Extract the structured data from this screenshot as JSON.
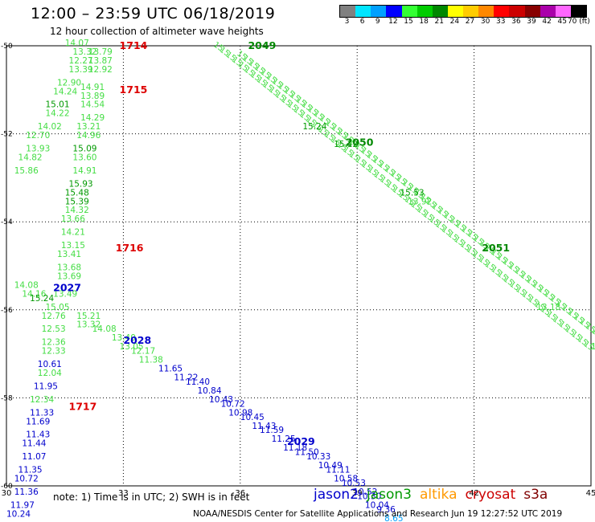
{
  "title": "12:00 – 23:59 UTC 06/18/2019",
  "subtitle": "12 hour collection of altimeter wave heights",
  "note": "note:  1) Time is in UTC; 2) SWH is in feet",
  "credit": "NOAA/NESDIS Center for Satellite Applications and Research     Jun 19 12:27:52 UTC 2019",
  "legend": {
    "satellites": [
      {
        "name": "jason2",
        "color": "#0000cc"
      },
      {
        "name": "jason3",
        "color": "#009900"
      },
      {
        "name": "altika",
        "color": "#ff9900"
      },
      {
        "name": "cryosat",
        "color": "#cc0000"
      },
      {
        "name": "s3a",
        "color": "#800000"
      }
    ],
    "color_scale": [
      {
        "label": "3",
        "color": "#808080"
      },
      {
        "label": "6",
        "color": "#00e5ff"
      },
      {
        "label": "9",
        "color": "#00a0ff"
      },
      {
        "label": "12",
        "color": "#0000ff"
      },
      {
        "label": "15",
        "color": "#33ff33"
      },
      {
        "label": "18",
        "color": "#00cc00"
      },
      {
        "label": "21",
        "color": "#008800"
      },
      {
        "label": "24",
        "color": "#ffff00"
      },
      {
        "label": "27",
        "color": "#ffcc00"
      },
      {
        "label": "30",
        "color": "#ff8800"
      },
      {
        "label": "33",
        "color": "#ff0000"
      },
      {
        "label": "36",
        "color": "#cc0000"
      },
      {
        "label": "39",
        "color": "#880000"
      },
      {
        "label": "42",
        "color": "#aa00aa"
      },
      {
        "label": "45",
        "color": "#ff66ff"
      },
      {
        "label": "70 (ft)",
        "color": "#000000"
      }
    ]
  },
  "chart_data": {
    "type": "scatter",
    "xlim": [
      30,
      45
    ],
    "ylim": [
      -60,
      -50
    ],
    "x_ticks": [
      "30",
      "33",
      "36",
      "39",
      "42",
      "45"
    ],
    "y_ticks": [
      "-50",
      "-52",
      "-54",
      "-56",
      "-58",
      "-60"
    ],
    "tracks": [
      {
        "label": "2049",
        "x": 36.2,
        "y": -50.0,
        "color": "#008800"
      },
      {
        "label": "2050",
        "x": 38.7,
        "y": -52.2,
        "color": "#008800"
      },
      {
        "label": "2051",
        "x": 42.2,
        "y": -54.6,
        "color": "#008800"
      },
      {
        "label": "1714",
        "x": 32.9,
        "y": -50.0,
        "color": "#dd0000"
      },
      {
        "label": "1715",
        "x": 32.9,
        "y": -51.0,
        "color": "#dd0000"
      },
      {
        "label": "1716",
        "x": 32.8,
        "y": -54.6,
        "color": "#dd0000"
      },
      {
        "label": "1717",
        "x": 31.6,
        "y": -58.2,
        "color": "#dd0000"
      },
      {
        "label": "2027",
        "x": 31.2,
        "y": -55.5,
        "color": "#0000cc"
      },
      {
        "label": "2028",
        "x": 33.0,
        "y": -56.7,
        "color": "#0000cc"
      },
      {
        "label": "2029",
        "x": 37.2,
        "y": -59.0,
        "color": "#0000cc"
      }
    ],
    "points": [
      {
        "x": 31.5,
        "y": -50.0,
        "v": "14.07",
        "c": "#44dd44"
      },
      {
        "x": 31.7,
        "y": -50.2,
        "v": "13.32",
        "c": "#44dd44"
      },
      {
        "x": 32.1,
        "y": -50.2,
        "v": "13.79",
        "c": "#44dd44"
      },
      {
        "x": 31.6,
        "y": -50.4,
        "v": "12.27",
        "c": "#44dd44"
      },
      {
        "x": 32.1,
        "y": -50.4,
        "v": "13.87",
        "c": "#44dd44"
      },
      {
        "x": 31.6,
        "y": -50.6,
        "v": "13.39",
        "c": "#44dd44"
      },
      {
        "x": 32.1,
        "y": -50.6,
        "v": "12.92",
        "c": "#44dd44"
      },
      {
        "x": 31.3,
        "y": -50.9,
        "v": "12.90",
        "c": "#44dd44"
      },
      {
        "x": 31.9,
        "y": -51.0,
        "v": "14.91",
        "c": "#44dd44"
      },
      {
        "x": 31.2,
        "y": -51.1,
        "v": "14.24",
        "c": "#44dd44"
      },
      {
        "x": 31.9,
        "y": -51.2,
        "v": "13.89",
        "c": "#44dd44"
      },
      {
        "x": 31.0,
        "y": -51.4,
        "v": "15.01",
        "c": "#009900"
      },
      {
        "x": 31.9,
        "y": -51.4,
        "v": "14.54",
        "c": "#44dd44"
      },
      {
        "x": 31.0,
        "y": -51.6,
        "v": "14.22",
        "c": "#44dd44"
      },
      {
        "x": 31.9,
        "y": -51.7,
        "v": "14.29",
        "c": "#44dd44"
      },
      {
        "x": 30.8,
        "y": -51.9,
        "v": "14.02",
        "c": "#44dd44"
      },
      {
        "x": 31.8,
        "y": -51.9,
        "v": "13.21",
        "c": "#44dd44"
      },
      {
        "x": 30.5,
        "y": -52.1,
        "v": "12.70",
        "c": "#44dd44"
      },
      {
        "x": 31.8,
        "y": -52.1,
        "v": "14.96",
        "c": "#44dd44"
      },
      {
        "x": 30.5,
        "y": -52.4,
        "v": "13.93",
        "c": "#44dd44"
      },
      {
        "x": 31.7,
        "y": -52.4,
        "v": "15.09",
        "c": "#009900"
      },
      {
        "x": 30.3,
        "y": -52.6,
        "v": "14.82",
        "c": "#44dd44"
      },
      {
        "x": 31.7,
        "y": -52.6,
        "v": "13.60",
        "c": "#44dd44"
      },
      {
        "x": 30.2,
        "y": -52.9,
        "v": "15.86",
        "c": "#44dd44"
      },
      {
        "x": 31.7,
        "y": -52.9,
        "v": "14.91",
        "c": "#44dd44"
      },
      {
        "x": 31.6,
        "y": -53.2,
        "v": "15.93",
        "c": "#009900"
      },
      {
        "x": 31.5,
        "y": -53.4,
        "v": "15.48",
        "c": "#009900"
      },
      {
        "x": 31.5,
        "y": -53.6,
        "v": "15.39",
        "c": "#009900"
      },
      {
        "x": 31.5,
        "y": -53.8,
        "v": "14.32",
        "c": "#44dd44"
      },
      {
        "x": 31.4,
        "y": -54.0,
        "v": "13.66",
        "c": "#44dd44"
      },
      {
        "x": 31.4,
        "y": -54.3,
        "v": "14.21",
        "c": "#44dd44"
      },
      {
        "x": 31.4,
        "y": -54.6,
        "v": "13.15",
        "c": "#44dd44"
      },
      {
        "x": 31.3,
        "y": -54.8,
        "v": "13.41",
        "c": "#44dd44"
      },
      {
        "x": 31.3,
        "y": -55.1,
        "v": "13.68",
        "c": "#44dd44"
      },
      {
        "x": 31.3,
        "y": -55.3,
        "v": "13.69",
        "c": "#44dd44"
      },
      {
        "x": 30.2,
        "y": -55.5,
        "v": "14.08",
        "c": "#44dd44"
      },
      {
        "x": 30.4,
        "y": -55.7,
        "v": "14.16",
        "c": "#44dd44"
      },
      {
        "x": 31.2,
        "y": -55.7,
        "v": "13.49",
        "c": "#44dd44"
      },
      {
        "x": 30.6,
        "y": -55.8,
        "v": "15.24",
        "c": "#009900"
      },
      {
        "x": 31.0,
        "y": -56.0,
        "v": "15.05",
        "c": "#44dd44"
      },
      {
        "x": 30.9,
        "y": -56.2,
        "v": "12.76",
        "c": "#44dd44"
      },
      {
        "x": 31.8,
        "y": -56.2,
        "v": "15.21",
        "c": "#44dd44"
      },
      {
        "x": 31.8,
        "y": -56.4,
        "v": "13.32",
        "c": "#44dd44"
      },
      {
        "x": 30.9,
        "y": -56.5,
        "v": "12.53",
        "c": "#44dd44"
      },
      {
        "x": 32.2,
        "y": -56.5,
        "v": "14.08",
        "c": "#44dd44"
      },
      {
        "x": 32.7,
        "y": -56.7,
        "v": "13.40",
        "c": "#44dd44"
      },
      {
        "x": 30.9,
        "y": -56.8,
        "v": "12.36",
        "c": "#44dd44"
      },
      {
        "x": 32.9,
        "y": -56.9,
        "v": "13.05",
        "c": "#44dd44"
      },
      {
        "x": 30.9,
        "y": -57.0,
        "v": "12.33",
        "c": "#44dd44"
      },
      {
        "x": 33.2,
        "y": -57.0,
        "v": "12.17",
        "c": "#44dd44"
      },
      {
        "x": 33.4,
        "y": -57.2,
        "v": "11.38",
        "c": "#44dd44"
      },
      {
        "x": 30.8,
        "y": -57.3,
        "v": "10.61",
        "c": "#0000cc"
      },
      {
        "x": 33.9,
        "y": -57.4,
        "v": "11.65",
        "c": "#0000cc"
      },
      {
        "x": 30.8,
        "y": -57.5,
        "v": "12.04",
        "c": "#44dd44"
      },
      {
        "x": 34.3,
        "y": -57.6,
        "v": "11.22",
        "c": "#0000cc"
      },
      {
        "x": 34.6,
        "y": -57.7,
        "v": "11.40",
        "c": "#0000cc"
      },
      {
        "x": 30.7,
        "y": -57.8,
        "v": "11.95",
        "c": "#0000cc"
      },
      {
        "x": 34.9,
        "y": -57.9,
        "v": "10.84",
        "c": "#0000cc"
      },
      {
        "x": 35.2,
        "y": -58.1,
        "v": "10.43",
        "c": "#0000cc"
      },
      {
        "x": 30.6,
        "y": -58.1,
        "v": "12.34",
        "c": "#44dd44"
      },
      {
        "x": 35.5,
        "y": -58.2,
        "v": "10.72",
        "c": "#0000cc"
      },
      {
        "x": 35.7,
        "y": -58.4,
        "v": "10.98",
        "c": "#0000cc"
      },
      {
        "x": 30.6,
        "y": -58.4,
        "v": "11.33",
        "c": "#0000cc"
      },
      {
        "x": 36.0,
        "y": -58.5,
        "v": "10.45",
        "c": "#0000cc"
      },
      {
        "x": 30.5,
        "y": -58.6,
        "v": "11.69",
        "c": "#0000cc"
      },
      {
        "x": 36.3,
        "y": -58.7,
        "v": "11.43",
        "c": "#0000cc"
      },
      {
        "x": 36.5,
        "y": -58.8,
        "v": "11.59",
        "c": "#0000cc"
      },
      {
        "x": 30.5,
        "y": -58.9,
        "v": "11.43",
        "c": "#0000cc"
      },
      {
        "x": 36.8,
        "y": -59.0,
        "v": "11.25",
        "c": "#0000cc"
      },
      {
        "x": 37.1,
        "y": -59.2,
        "v": "11.18",
        "c": "#0000cc"
      },
      {
        "x": 30.4,
        "y": -59.1,
        "v": "11.44",
        "c": "#0000cc"
      },
      {
        "x": 37.4,
        "y": -59.3,
        "v": "11.50",
        "c": "#0000cc"
      },
      {
        "x": 30.4,
        "y": -59.4,
        "v": "11.07",
        "c": "#0000cc"
      },
      {
        "x": 37.7,
        "y": -59.4,
        "v": "10.33",
        "c": "#0000cc"
      },
      {
        "x": 38.0,
        "y": -59.6,
        "v": "10.49",
        "c": "#0000cc"
      },
      {
        "x": 30.3,
        "y": -59.7,
        "v": "11.35",
        "c": "#0000cc"
      },
      {
        "x": 38.2,
        "y": -59.7,
        "v": "11.11",
        "c": "#0000cc"
      },
      {
        "x": 38.4,
        "y": -59.9,
        "v": "10.58",
        "c": "#0000cc"
      },
      {
        "x": 30.2,
        "y": -59.9,
        "v": "10.72",
        "c": "#0000cc"
      },
      {
        "x": 38.6,
        "y": -60.0,
        "v": "10.53",
        "c": "#0000cc"
      },
      {
        "x": 38.9,
        "y": -60.2,
        "v": "10.52",
        "c": "#0000cc"
      },
      {
        "x": 30.2,
        "y": -60.2,
        "v": "11.36",
        "c": "#0000cc"
      },
      {
        "x": 39.0,
        "y": -60.3,
        "v": "10.30",
        "c": "#0000cc"
      },
      {
        "x": 39.2,
        "y": -60.5,
        "v": "10.04",
        "c": "#0000cc"
      },
      {
        "x": 30.1,
        "y": -60.5,
        "v": "11.97",
        "c": "#0000cc"
      },
      {
        "x": 39.5,
        "y": -60.6,
        "v": "9.36",
        "c": "#0000cc"
      },
      {
        "x": 30.0,
        "y": -60.7,
        "v": "10.24",
        "c": "#0000cc"
      },
      {
        "x": 39.7,
        "y": -60.8,
        "v": "8.65",
        "c": "#00a0ff"
      },
      {
        "x": 37.6,
        "y": -51.9,
        "v": "15.24",
        "c": "#009900"
      },
      {
        "x": 38.4,
        "y": -52.3,
        "v": "15.12",
        "c": "#009900"
      },
      {
        "x": 40.1,
        "y": -53.4,
        "v": "15.53",
        "c": "#009900"
      },
      {
        "x": 40.3,
        "y": -53.6,
        "v": "13.92",
        "c": "#44dd44"
      },
      {
        "x": 43.6,
        "y": -56.0,
        "v": "13.18",
        "c": "#44dd44"
      },
      {
        "x": 45.0,
        "y": -56.9,
        "v": "15",
        "c": "#44dd44"
      }
    ],
    "dense_tracks": [
      {
        "from": [
          35.3,
          -50.0
        ],
        "to": [
          44.8,
          -56.8
        ],
        "color": "#44dd44"
      },
      {
        "from": [
          35.9,
          -50.2
        ],
        "to": [
          45.0,
          -56.5
        ],
        "color": "#44dd44"
      }
    ]
  }
}
